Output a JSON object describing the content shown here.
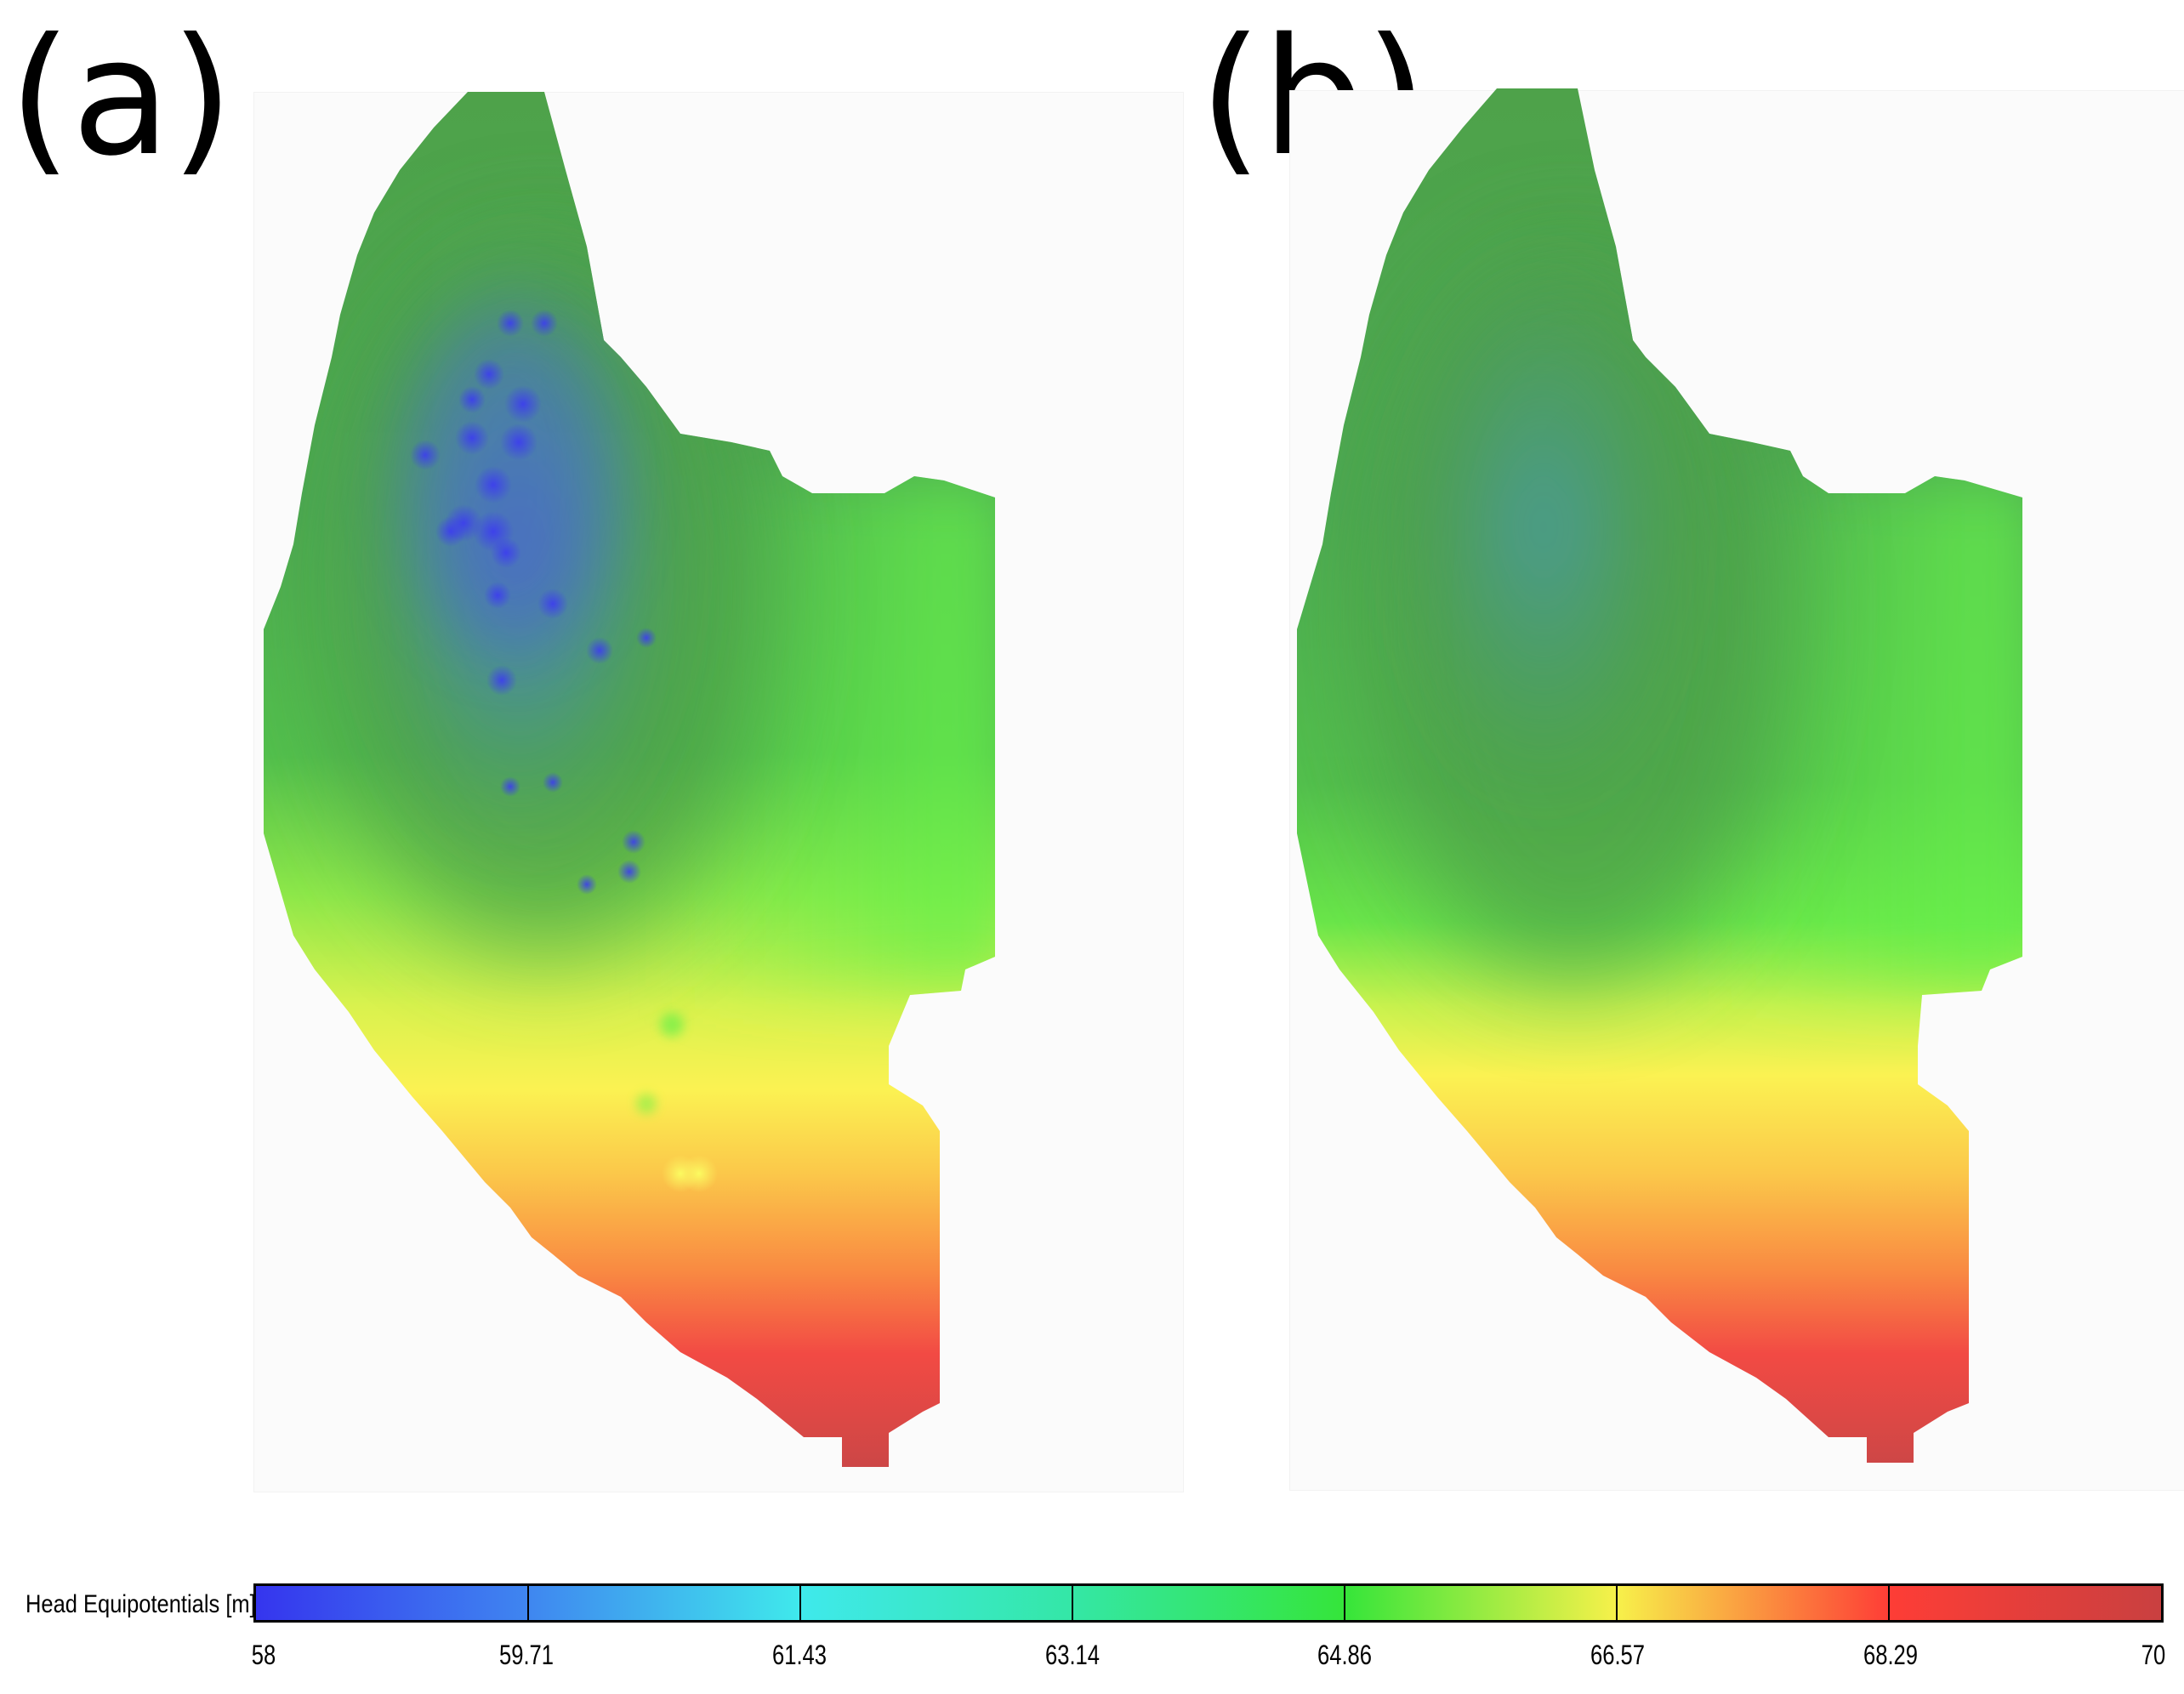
{
  "panels": [
    {
      "label": "(a)"
    },
    {
      "label": "(b)"
    }
  ],
  "legend": {
    "title": "Head Equipotentials [m]",
    "min": 58,
    "max": 70,
    "ticks": [
      "58",
      "59.71",
      "61.43",
      "63.14",
      "64.86",
      "66.57",
      "68.29",
      "70"
    ],
    "colors": [
      "#3535ee",
      "#3f86f0",
      "#3fe9ec",
      "#34e7a6",
      "#35e53a",
      "#f7f14a",
      "#fe3d36",
      "#c94040"
    ]
  }
}
